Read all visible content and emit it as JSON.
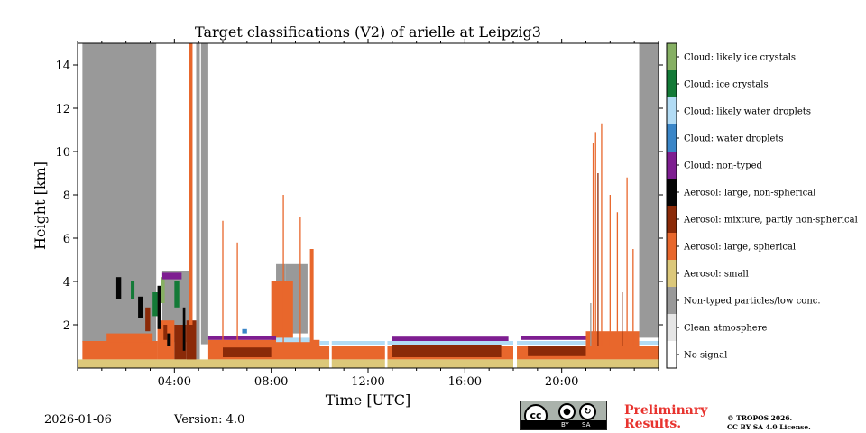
{
  "chart_data": {
    "type": "heatmap",
    "title": "Target classifications (V2) of arielle at Leipzig3",
    "xlabel": "Time [UTC]",
    "ylabel": "Height [km]",
    "xlim": [
      0,
      24
    ],
    "ylim": [
      0,
      15
    ],
    "x_ticks": [
      {
        "v": 4,
        "label": "04:00"
      },
      {
        "v": 8,
        "label": "08:00"
      },
      {
        "v": 12,
        "label": "12:00"
      },
      {
        "v": 16,
        "label": "16:00"
      },
      {
        "v": 20,
        "label": "20:00"
      }
    ],
    "y_ticks": [
      {
        "v": 2,
        "label": "2"
      },
      {
        "v": 4,
        "label": "4"
      },
      {
        "v": 6,
        "label": "6"
      },
      {
        "v": 8,
        "label": "8"
      },
      {
        "v": 10,
        "label": "10"
      },
      {
        "v": 12,
        "label": "12"
      },
      {
        "v": 14,
        "label": "14"
      }
    ],
    "classes": [
      {
        "label": "No signal",
        "color": "#ffffff"
      },
      {
        "label": "Clean atmosphere",
        "color": "#e6e6e6"
      },
      {
        "label": "Non-typed particles/low conc.",
        "color": "#999999"
      },
      {
        "label": "Aerosol: small",
        "color": "#dcc87a"
      },
      {
        "label": "Aerosol: large, spherical",
        "color": "#e8672c"
      },
      {
        "label": "Aerosol: mixture, partly non-spherical",
        "color": "#8b2a08"
      },
      {
        "label": "Aerosol: large, non-spherical",
        "color": "#050505"
      },
      {
        "label": "Cloud: non-typed",
        "color": "#7e1e91"
      },
      {
        "label": "Cloud: water droplets",
        "color": "#3a86c8"
      },
      {
        "label": "Cloud: likely water droplets",
        "color": "#b2dcf5"
      },
      {
        "label": "Cloud: ice crystals",
        "color": "#137a37"
      },
      {
        "label": "Cloud: likely ice crystals",
        "color": "#86b063"
      }
    ],
    "regions": [
      {
        "class": 2,
        "x0": 0.2,
        "x1": 3.25,
        "y0": 1.2,
        "y1": 15.0
      },
      {
        "class": 2,
        "x0": 3.5,
        "x1": 4.7,
        "y0": 1.2,
        "y1": 4.5
      },
      {
        "class": 2,
        "x0": 5.1,
        "x1": 5.4,
        "y0": 1.1,
        "y1": 15.0
      },
      {
        "class": 2,
        "x0": 23.2,
        "x1": 24.0,
        "y0": 1.4,
        "y1": 15.0
      },
      {
        "class": 2,
        "x0": 8.2,
        "x1": 8.6,
        "y0": 1.5,
        "y1": 4.8
      },
      {
        "class": 2,
        "x0": 8.6,
        "x1": 9.5,
        "y0": 1.6,
        "y1": 4.8
      },
      {
        "class": 4,
        "x0": 0.2,
        "x1": 3.3,
        "y0": 0.4,
        "y1": 1.25
      },
      {
        "class": 4,
        "x0": 1.2,
        "x1": 3.1,
        "y0": 1.2,
        "y1": 1.6
      },
      {
        "class": 4,
        "x0": 3.3,
        "x1": 4.0,
        "y0": 0.4,
        "y1": 2.2
      },
      {
        "class": 5,
        "x0": 4.0,
        "x1": 4.5,
        "y0": 0.4,
        "y1": 2.0
      },
      {
        "class": 5,
        "x0": 4.5,
        "x1": 4.9,
        "y0": 0.0,
        "y1": 2.2
      },
      {
        "class": 4,
        "x0": 4.6,
        "x1": 4.75,
        "y0": 2.0,
        "y1": 15.0
      },
      {
        "class": 2,
        "x0": 4.9,
        "x1": 5.05,
        "y0": 0.4,
        "y1": 15.0
      },
      {
        "class": 4,
        "x0": 5.4,
        "x1": 24.0,
        "y0": 0.4,
        "y1": 1.0
      },
      {
        "class": 5,
        "x0": 6.0,
        "x1": 8.0,
        "y0": 0.5,
        "y1": 0.95
      },
      {
        "class": 5,
        "x0": 13.0,
        "x1": 17.5,
        "y0": 0.5,
        "y1": 1.05
      },
      {
        "class": 5,
        "x0": 18.6,
        "x1": 21.0,
        "y0": 0.55,
        "y1": 1.0
      },
      {
        "class": 4,
        "x0": 5.4,
        "x1": 10.0,
        "y0": 1.0,
        "y1": 1.3
      },
      {
        "class": 4,
        "x0": 8.0,
        "x1": 8.9,
        "y0": 1.0,
        "y1": 4.0
      },
      {
        "class": 4,
        "x0": 9.6,
        "x1": 9.75,
        "y0": 1.0,
        "y1": 5.5
      },
      {
        "class": 9,
        "x0": 10.0,
        "x1": 24.0,
        "y0": 1.05,
        "y1": 1.25
      },
      {
        "class": 7,
        "x0": 5.4,
        "x1": 8.2,
        "y0": 1.3,
        "y1": 1.5
      },
      {
        "class": 7,
        "x0": 13.0,
        "x1": 17.8,
        "y0": 1.25,
        "y1": 1.45
      },
      {
        "class": 7,
        "x0": 18.3,
        "x1": 22.8,
        "y0": 1.3,
        "y1": 1.5
      },
      {
        "class": 4,
        "x0": 21.0,
        "x1": 23.2,
        "y0": 1.0,
        "y1": 1.7
      },
      {
        "class": 3,
        "x0": 0.0,
        "x1": 24.0,
        "y0": 0.0,
        "y1": 0.4
      },
      {
        "class": 0,
        "x0": 10.4,
        "x1": 10.5,
        "y0": 0.0,
        "y1": 15.0
      },
      {
        "class": 0,
        "x0": 12.7,
        "x1": 12.8,
        "y0": 0.0,
        "y1": 15.0
      },
      {
        "class": 0,
        "x0": 18.0,
        "x1": 18.15,
        "y0": 0.0,
        "y1": 15.0
      }
    ],
    "spikes": [
      {
        "class": 4,
        "x": 6.0,
        "y0": 1.0,
        "y1": 6.8
      },
      {
        "class": 4,
        "x": 6.6,
        "y0": 1.0,
        "y1": 5.8
      },
      {
        "class": 4,
        "x": 8.5,
        "y0": 1.0,
        "y1": 8.0
      },
      {
        "class": 4,
        "x": 9.2,
        "y0": 1.0,
        "y1": 7.0
      },
      {
        "class": 4,
        "x": 21.3,
        "y0": 1.0,
        "y1": 10.4
      },
      {
        "class": 4,
        "x": 21.4,
        "y0": 1.0,
        "y1": 10.9
      },
      {
        "class": 4,
        "x": 21.65,
        "y0": 1.0,
        "y1": 11.3
      },
      {
        "class": 4,
        "x": 22.0,
        "y0": 1.0,
        "y1": 8.0
      },
      {
        "class": 4,
        "x": 22.3,
        "y0": 1.0,
        "y1": 7.2
      },
      {
        "class": 4,
        "x": 22.7,
        "y0": 1.0,
        "y1": 8.8
      },
      {
        "class": 4,
        "x": 22.95,
        "y0": 1.0,
        "y1": 5.5
      },
      {
        "class": 5,
        "x": 21.5,
        "y0": 1.0,
        "y1": 9.0
      },
      {
        "class": 5,
        "x": 22.5,
        "y0": 1.0,
        "y1": 3.5
      },
      {
        "class": 2,
        "x": 21.2,
        "y0": 1.0,
        "y1": 3.0
      }
    ],
    "patches": [
      {
        "class": 6,
        "x0": 1.6,
        "x1": 1.8,
        "y0": 3.2,
        "y1": 4.2
      },
      {
        "class": 6,
        "x0": 2.5,
        "x1": 2.7,
        "y0": 2.3,
        "y1": 3.3
      },
      {
        "class": 6,
        "x0": 3.3,
        "x1": 3.45,
        "y0": 1.8,
        "y1": 3.8
      },
      {
        "class": 6,
        "x0": 3.7,
        "x1": 3.85,
        "y0": 1.0,
        "y1": 1.6
      },
      {
        "class": 6,
        "x0": 4.35,
        "x1": 4.45,
        "y0": 0.8,
        "y1": 2.8
      },
      {
        "class": 5,
        "x0": 2.8,
        "x1": 3.0,
        "y0": 1.7,
        "y1": 2.8
      },
      {
        "class": 5,
        "x0": 3.55,
        "x1": 3.7,
        "y0": 1.3,
        "y1": 2.0
      },
      {
        "class": 10,
        "x0": 2.2,
        "x1": 2.35,
        "y0": 3.2,
        "y1": 4.0
      },
      {
        "class": 10,
        "x0": 3.1,
        "x1": 3.3,
        "y0": 2.4,
        "y1": 3.5
      },
      {
        "class": 10,
        "x0": 4.0,
        "x1": 4.2,
        "y0": 2.8,
        "y1": 4.0
      },
      {
        "class": 11,
        "x0": 3.45,
        "x1": 3.6,
        "y0": 3.0,
        "y1": 4.2
      },
      {
        "class": 7,
        "x0": 3.5,
        "x1": 4.3,
        "y0": 4.1,
        "y1": 4.4
      },
      {
        "class": 8,
        "x0": 6.8,
        "x1": 7.0,
        "y0": 1.6,
        "y1": 1.8
      },
      {
        "class": 9,
        "x0": 8.2,
        "x1": 9.6,
        "y0": 1.2,
        "y1": 1.4
      }
    ]
  },
  "footer": {
    "date": "2026-01-06",
    "version": "Version: 4.0",
    "license_badge": {
      "cc": "cc",
      "by": "BY",
      "sa": "SA"
    },
    "preliminary_line1": "Preliminary",
    "preliminary_line2": "Results.",
    "copyright_line1": "© TROPOS 2026.",
    "copyright_line2": "CC BY SA 4.0 License."
  }
}
